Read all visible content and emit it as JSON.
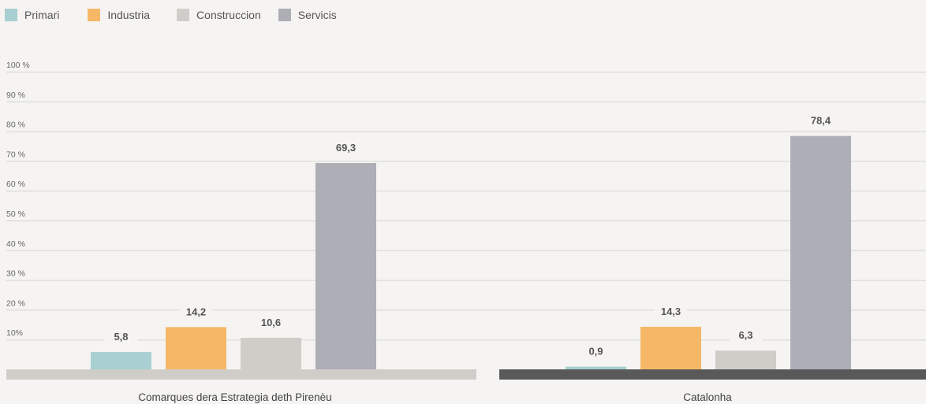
{
  "colors": {
    "background": "#f5f4f2",
    "gridline": "#d4d3cf",
    "tick_text": "#666666",
    "value_text": "#555555",
    "baseline_group_1": "#cfcdc8",
    "baseline_group_2": "#595959"
  },
  "chart_data": {
    "type": "bar",
    "categories": [
      "Comarques dera Estrategia deth Pirenèu",
      "Catalonha"
    ],
    "series": [
      {
        "name": "Primari",
        "color": "#a8cfd1",
        "values": [
          5.8,
          0.9
        ],
        "labels": [
          "5,8",
          "0,9"
        ]
      },
      {
        "name": "Industria",
        "color": "#f6b866",
        "values": [
          14.2,
          14.3
        ],
        "labels": [
          "14,2",
          "14,3"
        ]
      },
      {
        "name": "Construccion",
        "color": "#cfcdc8",
        "values": [
          10.6,
          6.3
        ],
        "labels": [
          "10,6",
          "6,3"
        ]
      },
      {
        "name": "Servicis",
        "color": "#adaeb6",
        "values": [
          69.3,
          78.4
        ],
        "labels": [
          "69,3",
          "78,4"
        ]
      }
    ],
    "y_ticks": [
      {
        "value": 10,
        "label": "10%"
      },
      {
        "value": 20,
        "label": "20 %"
      },
      {
        "value": 30,
        "label": "30 %"
      },
      {
        "value": 40,
        "label": "40 %"
      },
      {
        "value": 50,
        "label": "50 %"
      },
      {
        "value": 60,
        "label": "60 %"
      },
      {
        "value": 70,
        "label": "70 %"
      },
      {
        "value": 80,
        "label": "80 %"
      },
      {
        "value": 90,
        "label": "90 %"
      },
      {
        "value": 100,
        "label": "100 %"
      }
    ],
    "ylim": [
      0,
      100
    ],
    "grid": true,
    "legend_position": "top-left"
  }
}
